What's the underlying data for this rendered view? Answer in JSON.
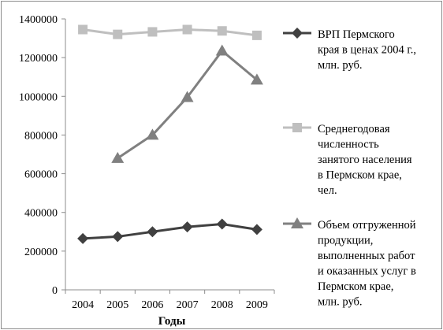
{
  "chart_data": {
    "type": "line",
    "x": [
      "2004",
      "2005",
      "2006",
      "2007",
      "2008",
      "2009"
    ],
    "xlabel": "Годы",
    "ylabel": "",
    "ylim": [
      0,
      1400000
    ],
    "yticks": [
      "0",
      "200000",
      "400000",
      "600000",
      "800000",
      "1000000",
      "1200000",
      "1400000"
    ],
    "grid": false,
    "legend_position": "right",
    "series": [
      {
        "name": "ВРП Пермского края в ценах 2004 г., млн. руб.",
        "legend_lines": [
          "ВРП Пермского",
          "края в ценах 2004 г.,",
          "млн. руб."
        ],
        "marker": "diamond",
        "color": "#404040",
        "values": [
          265000,
          275000,
          300000,
          325000,
          340000,
          312000
        ]
      },
      {
        "name": "Среднегодовая численность занятого населения в Пермском крае, чел.",
        "legend_lines": [
          "Среднегодовая",
          "численность",
          "занятого населения",
          "в Пермском крае,",
          "чел."
        ],
        "marker": "square",
        "color": "#bfbfbf",
        "values": [
          1345000,
          1320000,
          1333000,
          1345000,
          1338000,
          1315000
        ]
      },
      {
        "name": "Объем отгруженной продукции, выполненных работ и оказанных услуг в Пермском крае, млн. руб.",
        "legend_lines": [
          "Объем отгруженной",
          "продукции,",
          "выполненных работ",
          "и оказанных услуг в",
          "Пермском крае,",
          "млн. руб."
        ],
        "marker": "triangle",
        "color": "#808080",
        "values": [
          null,
          680000,
          800000,
          995000,
          1235000,
          1085000
        ]
      }
    ]
  }
}
